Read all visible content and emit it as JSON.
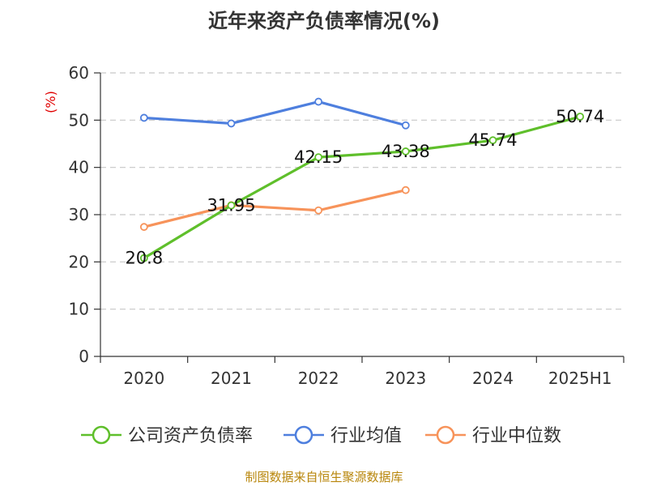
{
  "title": "近年来资产负债率情况(%)",
  "source": "制图数据来自恒生聚源数据库",
  "colors": {
    "company": "#5fbf2b",
    "industry_avg": "#4e7fde",
    "industry_median": "#f7935a",
    "grid": "#c8c8c8",
    "axis": "#333333",
    "unit": "#e00000",
    "source": "#b8860b"
  },
  "chart_data": {
    "type": "line",
    "title": "近年来资产负债率情况(%)",
    "ylabel": "(%)",
    "xlabel": "",
    "ylim": [
      0,
      60
    ],
    "yticks": [
      0,
      10,
      20,
      30,
      40,
      50,
      60
    ],
    "categories": [
      "2020",
      "2021",
      "2022",
      "2023",
      "2024",
      "2025H1"
    ],
    "grid": true,
    "legend_position": "bottom",
    "series": [
      {
        "name": "公司资产负债率",
        "color": "#5fbf2b",
        "values": [
          20.8,
          31.95,
          42.15,
          43.38,
          45.74,
          50.74
        ],
        "labels": [
          "20.8",
          "31.95",
          "42.15",
          "43.38",
          "45.74",
          "50.74"
        ]
      },
      {
        "name": "行业均值",
        "color": "#4e7fde",
        "values": [
          50.5,
          49.3,
          53.9,
          48.9,
          null,
          null
        ]
      },
      {
        "name": "行业中位数",
        "color": "#f7935a",
        "values": [
          27.4,
          32.0,
          30.9,
          35.2,
          null,
          null
        ]
      }
    ]
  }
}
